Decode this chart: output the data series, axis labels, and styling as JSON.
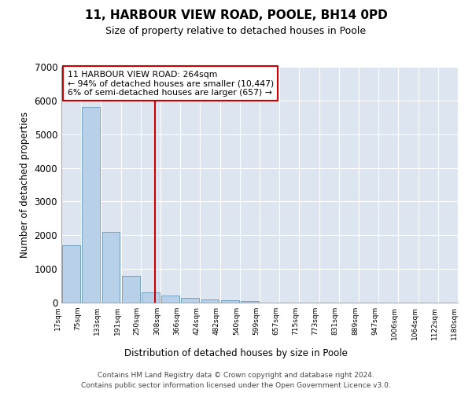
{
  "title1": "11, HARBOUR VIEW ROAD, POOLE, BH14 0PD",
  "title2": "Size of property relative to detached houses in Poole",
  "xlabel": "Distribution of detached houses by size in Poole",
  "ylabel": "Number of detached properties",
  "annotation_line1": "11 HARBOUR VIEW ROAD: 264sqm",
  "annotation_line2": "← 94% of detached houses are smaller (10,447)",
  "annotation_line3": "6% of semi-detached houses are larger (657) →",
  "footnote1": "Contains HM Land Registry data © Crown copyright and database right 2024.",
  "footnote2": "Contains public sector information licensed under the Open Government Licence v3.0.",
  "bin_labels": [
    "17sqm",
    "75sqm",
    "133sqm",
    "191sqm",
    "250sqm",
    "308sqm",
    "366sqm",
    "424sqm",
    "482sqm",
    "540sqm",
    "599sqm",
    "657sqm",
    "715sqm",
    "773sqm",
    "831sqm",
    "889sqm",
    "947sqm",
    "1006sqm",
    "1064sqm",
    "1122sqm",
    "1180sqm"
  ],
  "bar_values": [
    1700,
    5800,
    2100,
    800,
    300,
    200,
    130,
    100,
    65,
    50,
    0,
    0,
    0,
    0,
    0,
    0,
    0,
    0,
    0,
    0
  ],
  "bar_color": "#b8d0e8",
  "bar_edge_color": "#6699bb",
  "vline_color": "#cc0000",
  "grid_color": "#ffffff",
  "bg_color": "#dde6f0",
  "vline_x": 4.24,
  "ylim": [
    0,
    7000
  ],
  "yticks": [
    0,
    1000,
    2000,
    3000,
    4000,
    5000,
    6000,
    7000
  ]
}
